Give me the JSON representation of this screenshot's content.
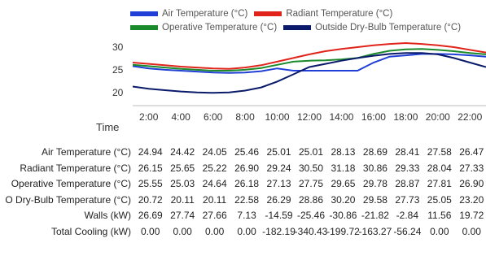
{
  "chart_data": {
    "type": "line",
    "title": "",
    "xlabel": "Time",
    "ylabel": "",
    "ylim": [
      18,
      32
    ],
    "yticks": [
      20,
      25,
      30
    ],
    "x_ticks": [
      "2:00",
      "4:00",
      "6:00",
      "8:00",
      "10:00",
      "12:00",
      "14:00",
      "16:00",
      "18:00",
      "20:00",
      "22:00"
    ],
    "x_hours": [
      1,
      2,
      3,
      4,
      5,
      6,
      7,
      8,
      9,
      10,
      11,
      12,
      13,
      14,
      15,
      16,
      17,
      18,
      19,
      20,
      21,
      22,
      23
    ],
    "legend_position": "top",
    "series": [
      {
        "name": "Air Temperature (°C)",
        "color": "#1f3fd6",
        "values": [
          26.0,
          25.5,
          25.2,
          25.0,
          24.8,
          24.6,
          24.5,
          24.6,
          24.9,
          25.5,
          25.0,
          25.0,
          25.0,
          25.0,
          25.0,
          26.8,
          28.1,
          28.4,
          28.7,
          28.7,
          28.6,
          28.4,
          28.1
        ]
      },
      {
        "name": "Radiant Temperature (°C)",
        "color": "#e0241b",
        "values": [
          26.8,
          26.5,
          26.2,
          25.9,
          25.7,
          25.5,
          25.4,
          25.7,
          26.2,
          27.0,
          27.8,
          28.6,
          29.3,
          29.8,
          30.2,
          30.6,
          30.9,
          31.1,
          30.9,
          30.6,
          30.2,
          29.6,
          29.0
        ]
      },
      {
        "name": "Operative Temperature (°C)",
        "color": "#1a8a2a",
        "values": [
          26.3,
          26.0,
          25.7,
          25.4,
          25.2,
          25.0,
          25.0,
          25.2,
          25.6,
          26.3,
          27.0,
          27.2,
          27.3,
          27.5,
          27.8,
          28.7,
          29.4,
          29.7,
          29.8,
          29.6,
          29.3,
          28.9,
          28.6
        ]
      },
      {
        "name": "Outside Dry-Bulb Temperature (°C)",
        "color": "#0a1a6a",
        "values": [
          21.5,
          21.0,
          20.7,
          20.4,
          20.2,
          20.1,
          20.2,
          20.6,
          21.3,
          22.6,
          24.2,
          25.8,
          26.5,
          27.2,
          27.8,
          28.3,
          28.7,
          28.9,
          28.9,
          28.6,
          27.8,
          26.8,
          25.8
        ]
      }
    ],
    "legend_extra_name": ""
  },
  "table": {
    "columns": [
      "2:00",
      "4:00",
      "6:00",
      "8:00",
      "10:00",
      "12:00",
      "14:00",
      "16:00",
      "18:00",
      "20:00",
      "22:00"
    ],
    "rows": [
      {
        "label": "Air Temperature (°C)",
        "values": [
          "24.94",
          "24.42",
          "24.05",
          "25.46",
          "25.01",
          "25.01",
          "28.13",
          "28.69",
          "28.41",
          "27.58",
          "26.47"
        ]
      },
      {
        "label": "Radiant Temperature (°C)",
        "values": [
          "26.15",
          "25.65",
          "25.22",
          "26.90",
          "29.24",
          "30.50",
          "31.18",
          "30.86",
          "29.33",
          "28.04",
          "27.33"
        ]
      },
      {
        "label": "Operative Temperature (°C)",
        "values": [
          "25.55",
          "25.03",
          "24.64",
          "26.18",
          "27.13",
          "27.75",
          "29.65",
          "29.78",
          "28.87",
          "27.81",
          "26.90"
        ]
      },
      {
        "label": "O Dry-Bulb Temperature (°C)",
        "values": [
          "20.72",
          "20.11",
          "20.11",
          "22.58",
          "26.29",
          "28.86",
          "30.20",
          "29.58",
          "27.73",
          "25.05",
          "23.20"
        ]
      },
      {
        "label": "Walls (kW)",
        "values": [
          "26.69",
          "27.74",
          "27.66",
          "7.13",
          "-14.59",
          "-25.46",
          "-30.86",
          "-21.82",
          "-2.84",
          "11.56",
          "19.72"
        ]
      },
      {
        "label": "Total Cooling (kW)",
        "values": [
          "0.00",
          "0.00",
          "0.00",
          "0.00",
          "-182.19",
          "-340.43",
          "-199.72",
          "-163.27",
          "-56.24",
          "0.00",
          "0.00"
        ]
      }
    ]
  }
}
